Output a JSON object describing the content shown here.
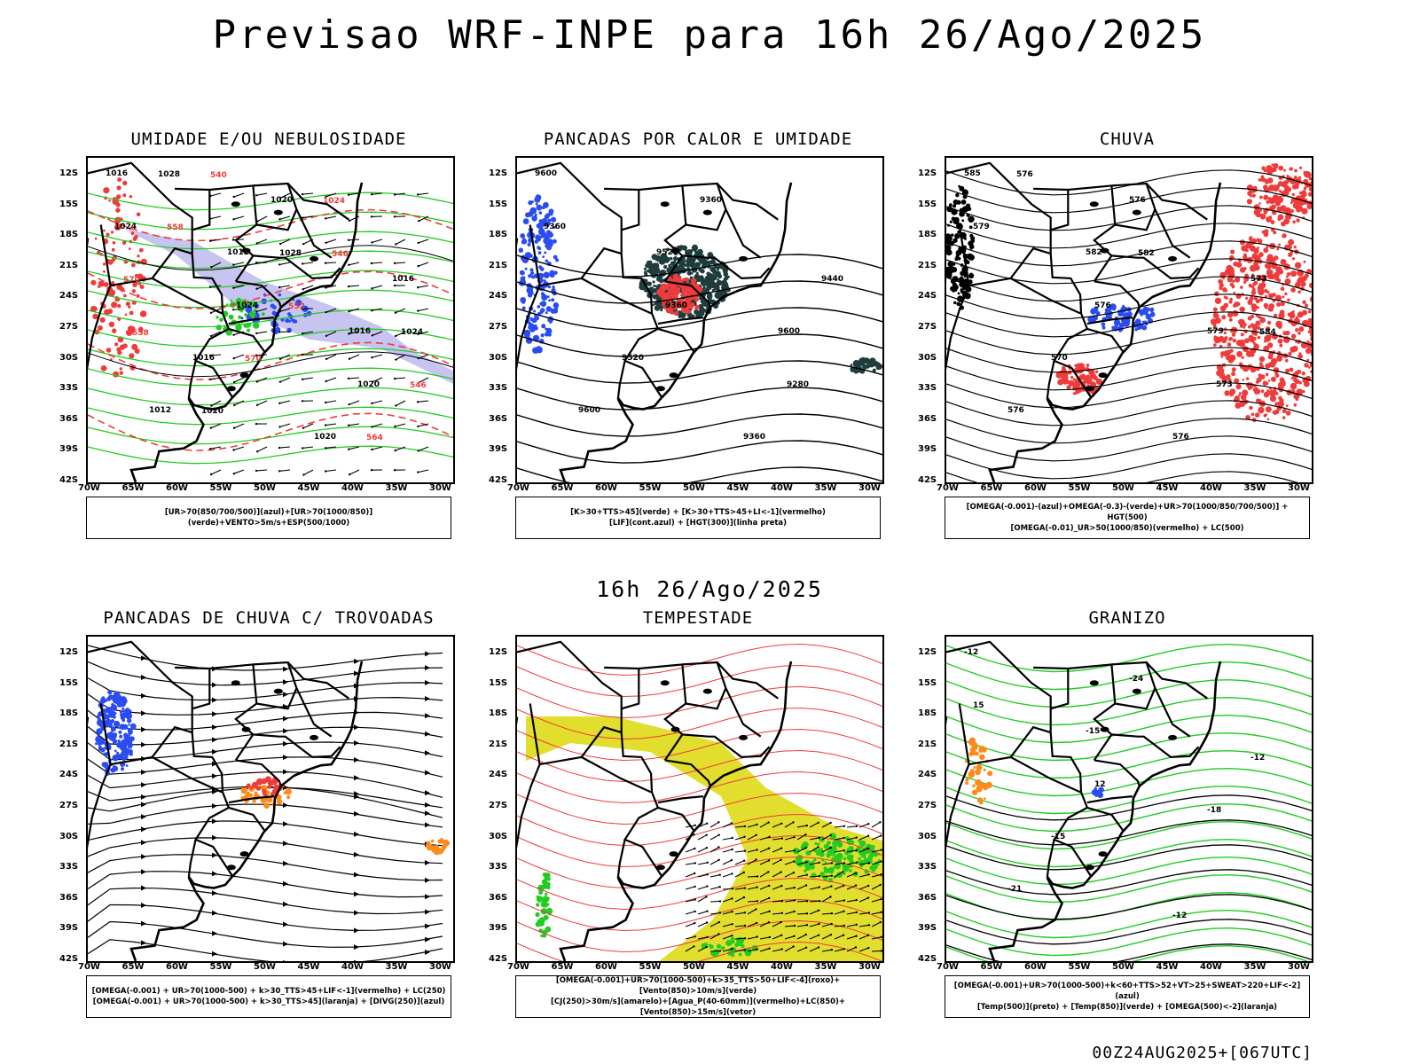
{
  "header": {
    "title": "Previsao WRF-INPE  para 16h 26/Ago/2025"
  },
  "mid_time": "16h 26/Ago/2025",
  "footer": "00Z24AUG2025+[067UTC]",
  "axes": {
    "lat_ticks": [
      "12S",
      "15S",
      "18S",
      "21S",
      "24S",
      "27S",
      "30S",
      "33S",
      "36S",
      "39S",
      "42S"
    ],
    "lon_ticks": [
      "70W",
      "65W",
      "60W",
      "55W",
      "50W",
      "45W",
      "40W",
      "35W",
      "30W"
    ]
  },
  "colors": {
    "red": "#ef3b3b",
    "green": "#22cc22",
    "blue": "#2a4cf0",
    "dark_teal": "#1f3d3d",
    "yellow": "#e2de2e",
    "orange": "#ff8a1c",
    "lavender": "#b4b0ec"
  },
  "panels": [
    {
      "title": "UMIDADE E/OU NEBULOSIDADE",
      "legend": [
        "[UR>70(850/700/500)](azul)+[UR>70(1000/850)](verde)+VENTO>5m/s+ESP(500/1000)"
      ],
      "labels": [
        "1016",
        "1012",
        "1016",
        "1012",
        "1020",
        "1016",
        "1016",
        "1020",
        "1024",
        "1024",
        "1020",
        "1028",
        "1028",
        "1024",
        "1020",
        "1024",
        "570",
        "570",
        "564",
        "558",
        "552",
        "546",
        "540",
        "546",
        "558"
      ]
    },
    {
      "title": "PANCADAS POR CALOR E UMIDADE",
      "legend": [
        "[K>30+TTS>45](verde) + [K>30+TTS>45+LI<-1](vermelho)",
        "[LIF](cont.azul) + [HGT(300)](linha preta)"
      ],
      "labels": [
        "9600",
        "9520",
        "9600",
        "9600",
        "9360",
        "9440",
        "9520",
        "9360",
        "9360",
        "9360",
        "9280"
      ]
    },
    {
      "title": "CHUVA",
      "legend": [
        "[OMEGA(-0.001)-(azul)+OMEGA(-0.3)-(verde)+UR>70(1000/850/700/500)] + HGT(500)",
        "[OMEGA(-0.01)_UR>50(1000/850)(vermelho) + LC(500)"
      ],
      "labels": [
        "585",
        "582",
        "579",
        "576",
        "576",
        "573",
        "570",
        "576",
        "579",
        "576",
        "573",
        "576",
        "582",
        "584"
      ]
    },
    {
      "title": "PANCADAS DE CHUVA C/ TROVOADAS",
      "legend": [
        "[OMEGA(-0.001) + UR>70(1000-500) + k>30_TTS>45+LIF<-1](vermelho) + LC(250)",
        "[OMEGA(-0.001) + UR>70(1000-500) + k>30_TTS>45](laranja) + [DIVG(250)](azul)"
      ],
      "labels": []
    },
    {
      "title": "TEMPESTADE",
      "legend": [
        "[OMEGA(-0.001)+UR>70(1000-500)+k>35_TTS>50+LIF<-4](roxo)+[Vento(850)>10m/s](verde)",
        "[CJ(250)>30m/s](amarelo)+[Agua_P(40-60mm)](vermelho)+LC(850)+[Vento(850)>15m/s](vetor)"
      ],
      "labels": []
    },
    {
      "title": "GRANIZO",
      "legend": [
        "[OMEGA(-0.001)+UR>70(1000-500)+k<60+TTS>52+VT>25+SWEAT>220+LIF<-2](azul)",
        "[Temp(500)](preto) + [Temp(850)](verde) + [OMEGA(500)<-2](laranja)"
      ],
      "labels": [
        "-12",
        "-15",
        "-18",
        "-21",
        "-24",
        "-12",
        "-15",
        "-12",
        "15",
        "12"
      ]
    }
  ]
}
